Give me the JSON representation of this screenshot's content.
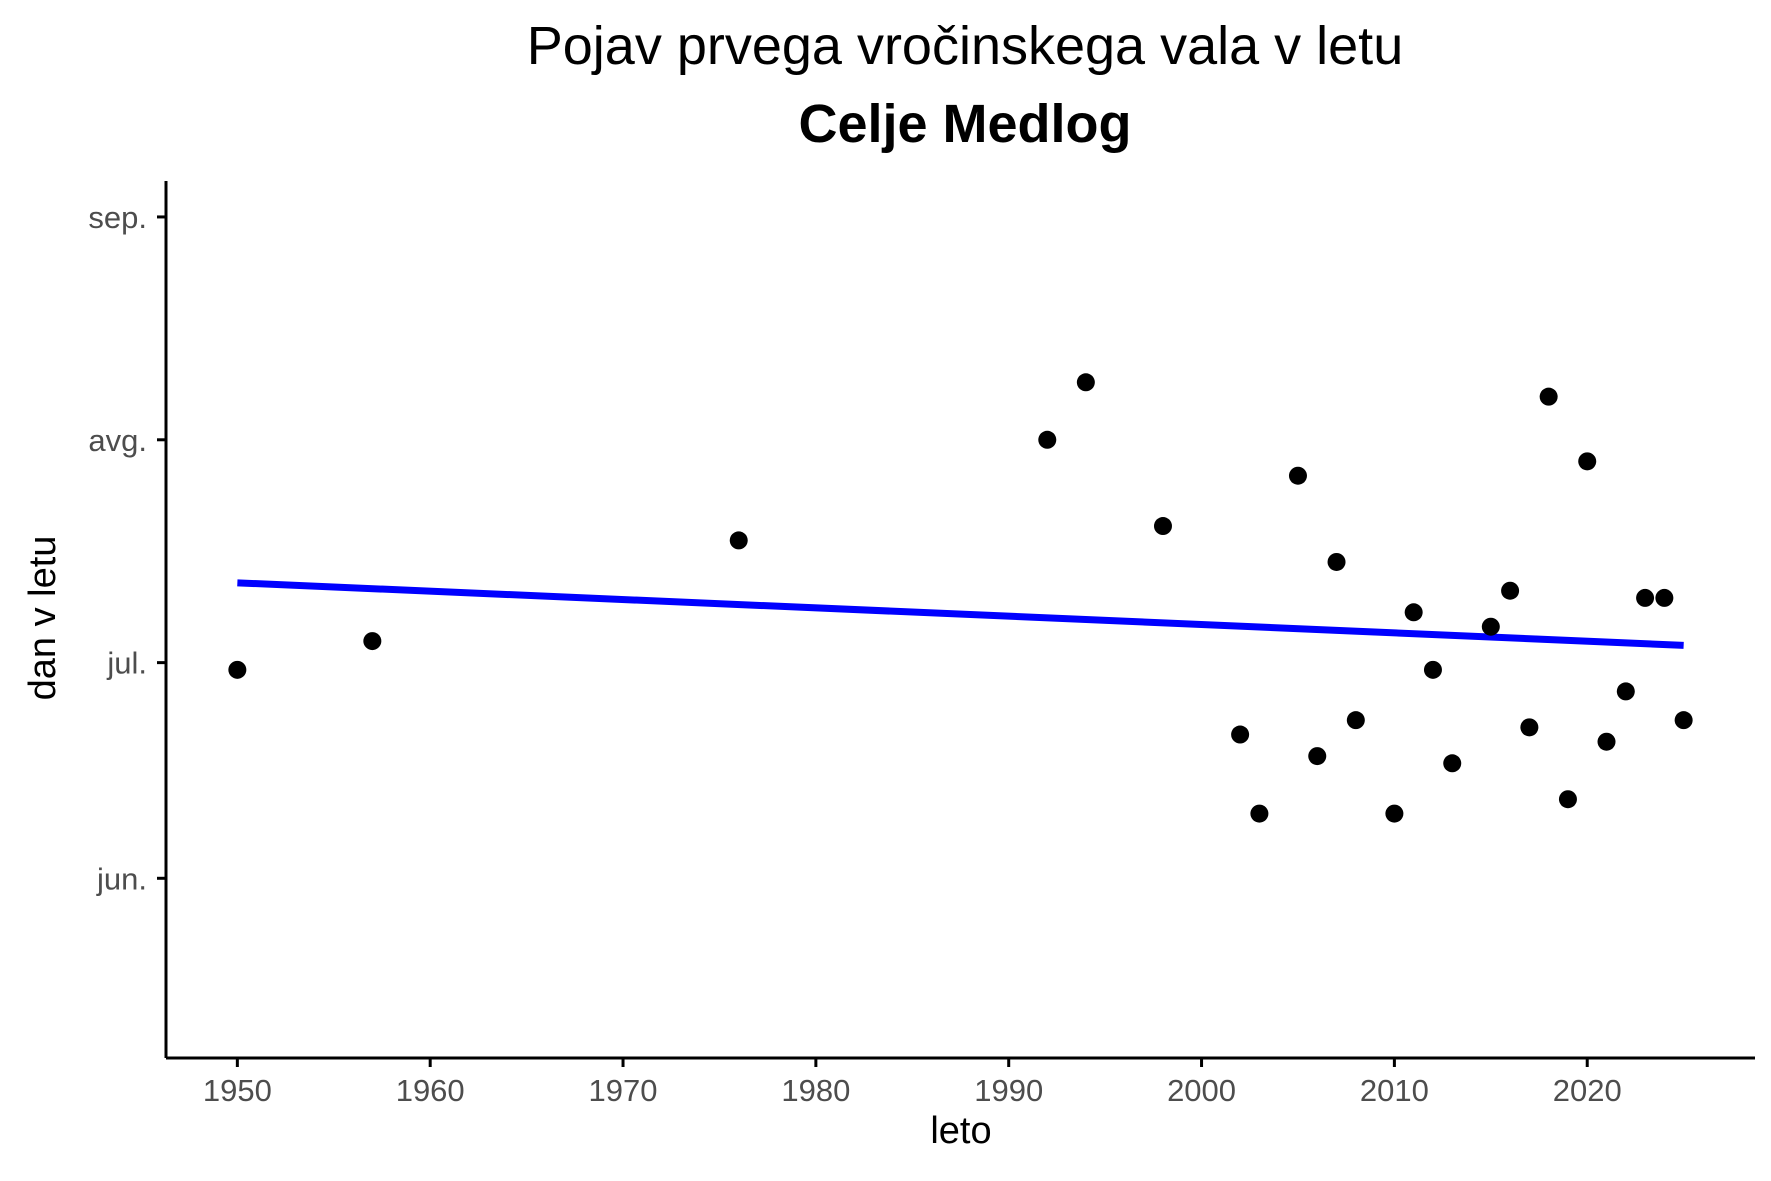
{
  "chart_data": {
    "type": "scatter",
    "title": "Pojav prvega vročinskega vala v letu",
    "subtitle": "Celje Medlog",
    "xlabel": "leto",
    "ylabel": "dan v letu",
    "x_ticks": [
      1950,
      1960,
      1970,
      1980,
      1990,
      2000,
      2010,
      2020
    ],
    "y_ticks": [
      {
        "label": "jun.",
        "day": 152
      },
      {
        "label": "jul.",
        "day": 182
      },
      {
        "label": "avg.",
        "day": 213
      },
      {
        "label": "sep.",
        "day": 244
      }
    ],
    "xlim": [
      1946.3,
      2028.7
    ],
    "ylim": [
      127,
      249
    ],
    "grid": false,
    "points": [
      {
        "x": 1950,
        "y": 181
      },
      {
        "x": 1957,
        "y": 185
      },
      {
        "x": 1976,
        "y": 199
      },
      {
        "x": 1992,
        "y": 213
      },
      {
        "x": 1994,
        "y": 221
      },
      {
        "x": 1998,
        "y": 201
      },
      {
        "x": 2002,
        "y": 172
      },
      {
        "x": 2003,
        "y": 161
      },
      {
        "x": 2005,
        "y": 208
      },
      {
        "x": 2006,
        "y": 169
      },
      {
        "x": 2007,
        "y": 196
      },
      {
        "x": 2008,
        "y": 174
      },
      {
        "x": 2010,
        "y": 161
      },
      {
        "x": 2011,
        "y": 189
      },
      {
        "x": 2012,
        "y": 181
      },
      {
        "x": 2013,
        "y": 168
      },
      {
        "x": 2015,
        "y": 187
      },
      {
        "x": 2016,
        "y": 192
      },
      {
        "x": 2017,
        "y": 173
      },
      {
        "x": 2018,
        "y": 219
      },
      {
        "x": 2019,
        "y": 163
      },
      {
        "x": 2020,
        "y": 210
      },
      {
        "x": 2021,
        "y": 171
      },
      {
        "x": 2022,
        "y": 178
      },
      {
        "x": 2023,
        "y": 191
      },
      {
        "x": 2024,
        "y": 191
      },
      {
        "x": 2025,
        "y": 174
      }
    ],
    "trend": {
      "x_start": 1950,
      "y_start": 193.1,
      "x_end": 2025,
      "y_end": 184.4
    },
    "colors": {
      "points": "#000000",
      "trend": "#0000ff",
      "axis": "#000000"
    }
  }
}
